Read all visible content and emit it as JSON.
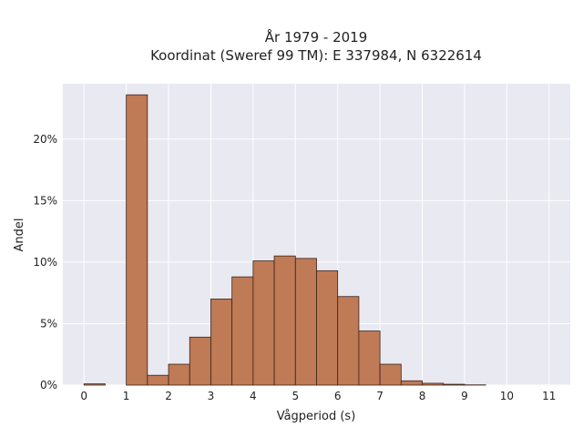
{
  "chart_data": {
    "type": "bar",
    "title_line1": "År 1979 - 2019",
    "title_line2": "Koordinat (Sweref 99 TM): E 337984, N 6322614",
    "xlabel": "Vågperiod (s)",
    "ylabel": "Andel",
    "x_ticks": [
      "0",
      "1",
      "2",
      "3",
      "4",
      "5",
      "6",
      "7",
      "8",
      "9",
      "10",
      "11"
    ],
    "y_ticks": [
      "0%",
      "5%",
      "10%",
      "15%",
      "20%"
    ],
    "xlim": [
      -0.5,
      11.5
    ],
    "ylim": [
      0,
      24.5
    ],
    "bin_width": 0.5,
    "bins_start": [
      0,
      0.5,
      1,
      1.5,
      2,
      2.5,
      3,
      3.5,
      4,
      4.5,
      5,
      5.5,
      6,
      6.5,
      7,
      7.5,
      8,
      8.5,
      9,
      9.5,
      10,
      10.5
    ],
    "values": [
      0.1,
      0,
      23.6,
      0.8,
      1.7,
      3.9,
      7.0,
      8.8,
      10.1,
      10.5,
      10.3,
      9.3,
      7.2,
      4.4,
      1.7,
      0.35,
      0.15,
      0.07,
      0.02,
      0,
      0,
      0
    ],
    "grid": true,
    "colors": {
      "bar_fill": "#bf7a56",
      "bar_edge": "#3a2418",
      "plot_bg": "#e9e9f1",
      "grid": "#ffffff"
    }
  }
}
